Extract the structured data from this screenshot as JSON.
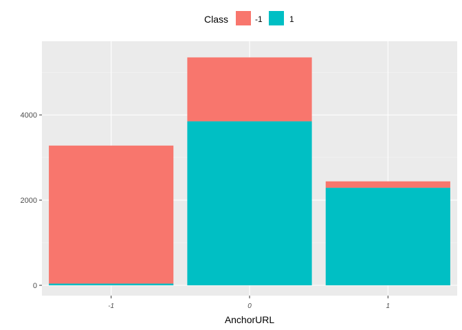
{
  "chart_data": {
    "type": "bar",
    "stacked": true,
    "categories": [
      "-1",
      "0",
      "1"
    ],
    "series": [
      {
        "name": "1",
        "values": [
          40,
          3850,
          2290
        ],
        "color": "#00bfc4"
      },
      {
        "name": "-1",
        "values": [
          3240,
          1500,
          150
        ],
        "color": "#f8766d"
      }
    ],
    "xlabel": "AnchorURL",
    "ylabel": "",
    "ylim": [
      0,
      5600
    ],
    "yticks": [
      0,
      2000,
      4000
    ],
    "legend": {
      "title": "Class",
      "position": "top",
      "entries": [
        "-1",
        "1"
      ]
    },
    "grid": true,
    "background": "#ebebeb"
  }
}
